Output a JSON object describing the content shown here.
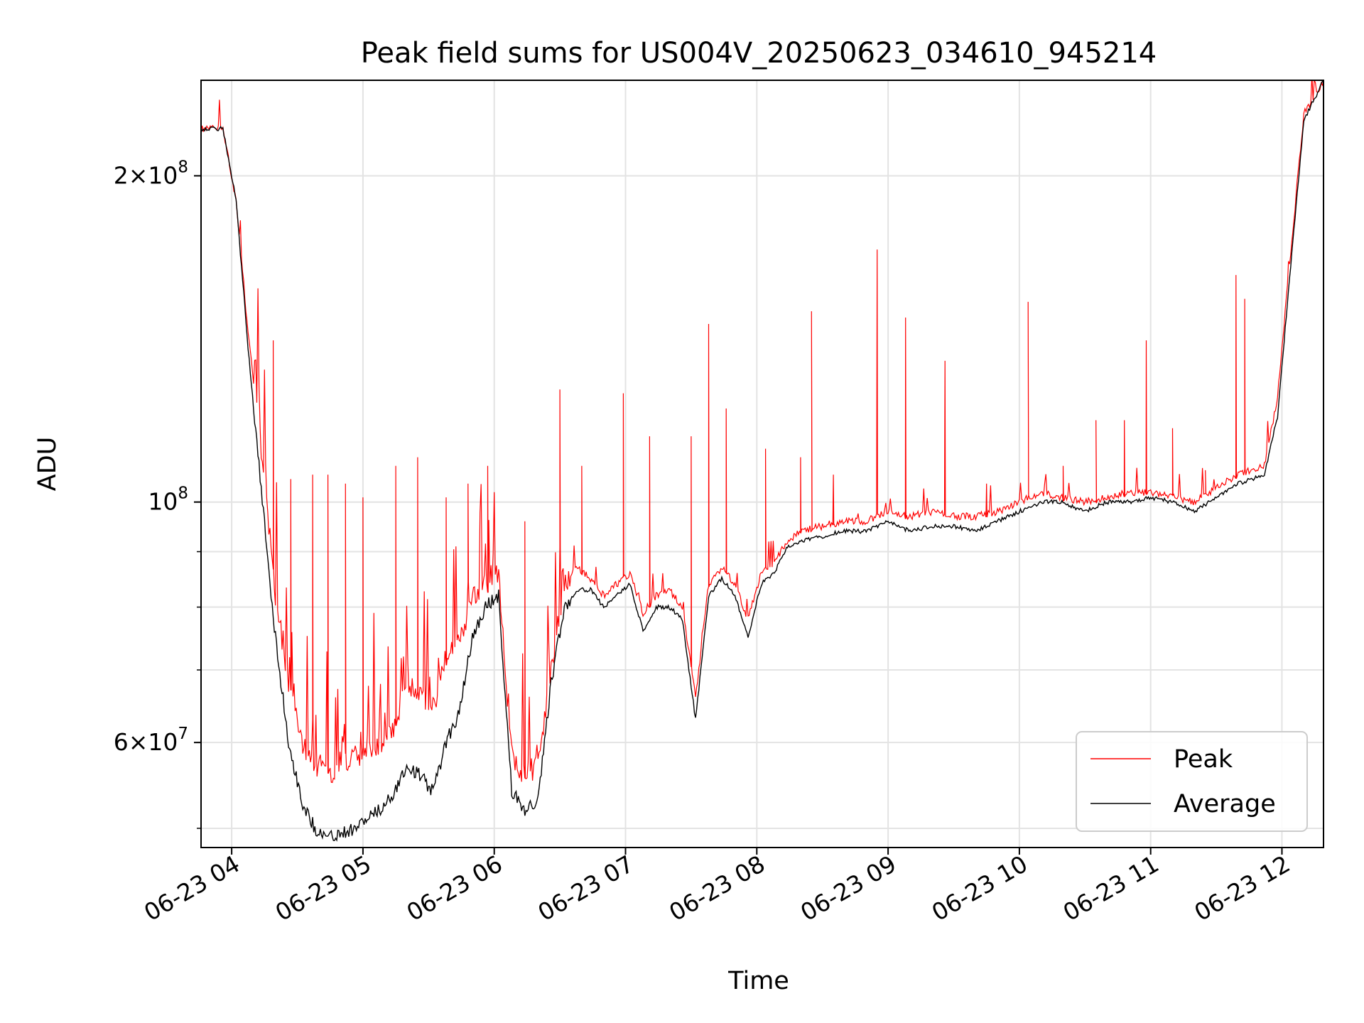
{
  "chart_data": {
    "type": "line",
    "title": "Peak field sums for US004V_20250623_034610_945214",
    "xlabel": "Time",
    "ylabel": "ADU",
    "yscale": "log",
    "xlim": [
      "2025-06-23 03:46",
      "2025-06-23 12:19"
    ],
    "ylim": [
      48000000,
      245000000
    ],
    "x_ticks": [
      "06-23 04",
      "06-23 05",
      "06-23 06",
      "06-23 07",
      "06-23 08",
      "06-23 09",
      "06-23 10",
      "06-23 11",
      "06-23 12"
    ],
    "y_ticks": [
      {
        "value": 200000000,
        "mantissa": "2",
        "exponent": "8"
      },
      {
        "value": 100000000,
        "mantissa": "",
        "exponent": "8"
      },
      {
        "value": 60000000,
        "mantissa": "6",
        "exponent": "7"
      }
    ],
    "grid": true,
    "legend_position": "lower right",
    "series": [
      {
        "name": "Peak",
        "color": "#ff0000",
        "x": [
          "03:46",
          "03:56",
          "04:02",
          "04:08",
          "04:14",
          "04:20",
          "04:26",
          "04:32",
          "04:38",
          "04:44",
          "04:50",
          "04:56",
          "05:02",
          "05:08",
          "05:14",
          "05:20",
          "05:26",
          "05:32",
          "05:38",
          "05:44",
          "05:50",
          "05:56",
          "06:02",
          "06:08",
          "06:14",
          "06:20",
          "06:26",
          "06:32",
          "06:38",
          "06:44",
          "06:50",
          "06:56",
          "07:02",
          "07:08",
          "07:14",
          "07:20",
          "07:26",
          "07:32",
          "07:38",
          "07:44",
          "07:50",
          "07:56",
          "08:02",
          "08:08",
          "08:14",
          "08:20",
          "08:30",
          "08:40",
          "08:50",
          "09:00",
          "09:10",
          "09:20",
          "09:30",
          "09:40",
          "09:50",
          "10:00",
          "10:10",
          "10:20",
          "10:30",
          "10:40",
          "10:50",
          "11:00",
          "11:10",
          "11:20",
          "11:30",
          "11:40",
          "11:46",
          "11:52",
          "11:58",
          "12:04",
          "12:10",
          "12:19"
        ],
        "y": [
          221000000,
          221000000,
          190000000,
          140000000,
          110000000,
          82000000,
          68000000,
          60000000,
          57000000,
          56000000,
          57000000,
          58000000,
          59000000,
          60000000,
          62000000,
          68000000,
          66000000,
          64000000,
          72000000,
          74000000,
          82000000,
          84000000,
          86000000,
          58000000,
          56000000,
          57000000,
          70000000,
          84000000,
          87000000,
          85000000,
          82000000,
          84000000,
          86000000,
          79000000,
          82000000,
          83000000,
          80000000,
          66000000,
          84000000,
          87000000,
          84000000,
          78000000,
          86000000,
          88000000,
          92000000,
          94000000,
          95000000,
          96000000,
          96000000,
          98000000,
          97000000,
          98000000,
          97000000,
          97000000,
          98000000,
          100000000,
          102000000,
          101000000,
          100000000,
          101000000,
          102000000,
          102000000,
          101000000,
          100000000,
          103000000,
          106000000,
          107000000,
          108000000,
          125000000,
          170000000,
          228000000,
          245000000
        ],
        "spikes": [
          {
            "x": "04:19",
            "y": 141000000
          },
          {
            "x": "04:27",
            "y": 105000000
          },
          {
            "x": "04:37",
            "y": 106000000
          },
          {
            "x": "04:44",
            "y": 106000000
          },
          {
            "x": "04:52",
            "y": 104000000
          },
          {
            "x": "05:00",
            "y": 101000000
          },
          {
            "x": "05:15",
            "y": 108000000
          },
          {
            "x": "05:25",
            "y": 110000000
          },
          {
            "x": "05:38",
            "y": 101000000
          },
          {
            "x": "05:48",
            "y": 104000000
          },
          {
            "x": "05:57",
            "y": 108000000
          },
          {
            "x": "06:14",
            "y": 96000000
          },
          {
            "x": "06:30",
            "y": 127000000
          },
          {
            "x": "06:40",
            "y": 108000000
          },
          {
            "x": "06:59",
            "y": 126000000
          },
          {
            "x": "07:11",
            "y": 115000000
          },
          {
            "x": "07:30",
            "y": 115000000
          },
          {
            "x": "07:38",
            "y": 146000000
          },
          {
            "x": "07:46",
            "y": 122000000
          },
          {
            "x": "08:04",
            "y": 112000000
          },
          {
            "x": "08:20",
            "y": 110000000
          },
          {
            "x": "08:25",
            "y": 150000000
          },
          {
            "x": "08:35",
            "y": 106000000
          },
          {
            "x": "08:55",
            "y": 171000000
          },
          {
            "x": "09:08",
            "y": 148000000
          },
          {
            "x": "09:26",
            "y": 135000000
          },
          {
            "x": "09:45",
            "y": 104000000
          },
          {
            "x": "10:04",
            "y": 153000000
          },
          {
            "x": "10:20",
            "y": 108000000
          },
          {
            "x": "10:35",
            "y": 119000000
          },
          {
            "x": "10:48",
            "y": 119000000
          },
          {
            "x": "10:58",
            "y": 141000000
          },
          {
            "x": "11:10",
            "y": 117000000
          },
          {
            "x": "11:25",
            "y": 107000000
          },
          {
            "x": "11:39",
            "y": 162000000
          },
          {
            "x": "11:43",
            "y": 154000000
          }
        ]
      },
      {
        "name": "Average",
        "color": "#000000",
        "x": [
          "03:46",
          "03:56",
          "04:02",
          "04:08",
          "04:14",
          "04:20",
          "04:26",
          "04:32",
          "04:38",
          "04:44",
          "04:50",
          "04:56",
          "05:02",
          "05:08",
          "05:14",
          "05:20",
          "05:26",
          "05:32",
          "05:38",
          "05:44",
          "05:50",
          "05:56",
          "06:02",
          "06:08",
          "06:14",
          "06:20",
          "06:26",
          "06:32",
          "06:38",
          "06:44",
          "06:50",
          "06:56",
          "07:02",
          "07:08",
          "07:14",
          "07:20",
          "07:26",
          "07:32",
          "07:38",
          "07:44",
          "07:50",
          "07:56",
          "08:02",
          "08:08",
          "08:14",
          "08:20",
          "08:30",
          "08:40",
          "08:50",
          "09:00",
          "09:10",
          "09:20",
          "09:30",
          "09:40",
          "09:50",
          "10:00",
          "10:10",
          "10:20",
          "10:30",
          "10:40",
          "10:50",
          "11:00",
          "11:10",
          "11:20",
          "11:30",
          "11:40",
          "11:46",
          "11:52",
          "11:58",
          "12:04",
          "12:10",
          "12:19"
        ],
        "y": [
          221000000,
          221000000,
          190000000,
          135000000,
          100000000,
          75000000,
          60000000,
          53000000,
          50000000,
          49000000,
          49500000,
          50000000,
          51000000,
          52000000,
          54000000,
          57000000,
          56000000,
          54000000,
          60000000,
          64000000,
          75000000,
          80000000,
          82000000,
          54000000,
          52000000,
          53000000,
          68000000,
          80000000,
          83000000,
          83000000,
          80000000,
          82000000,
          84000000,
          76000000,
          80000000,
          80000000,
          78000000,
          63000000,
          82000000,
          85000000,
          82000000,
          75000000,
          84000000,
          86000000,
          91000000,
          92000000,
          93000000,
          94000000,
          94000000,
          96000000,
          94000000,
          95000000,
          95000000,
          94000000,
          96000000,
          98000000,
          100000000,
          100000000,
          98000000,
          100000000,
          100000000,
          101000000,
          100000000,
          98000000,
          101000000,
          104000000,
          105000000,
          106000000,
          120000000,
          165000000,
          225000000,
          245000000
        ]
      }
    ]
  }
}
